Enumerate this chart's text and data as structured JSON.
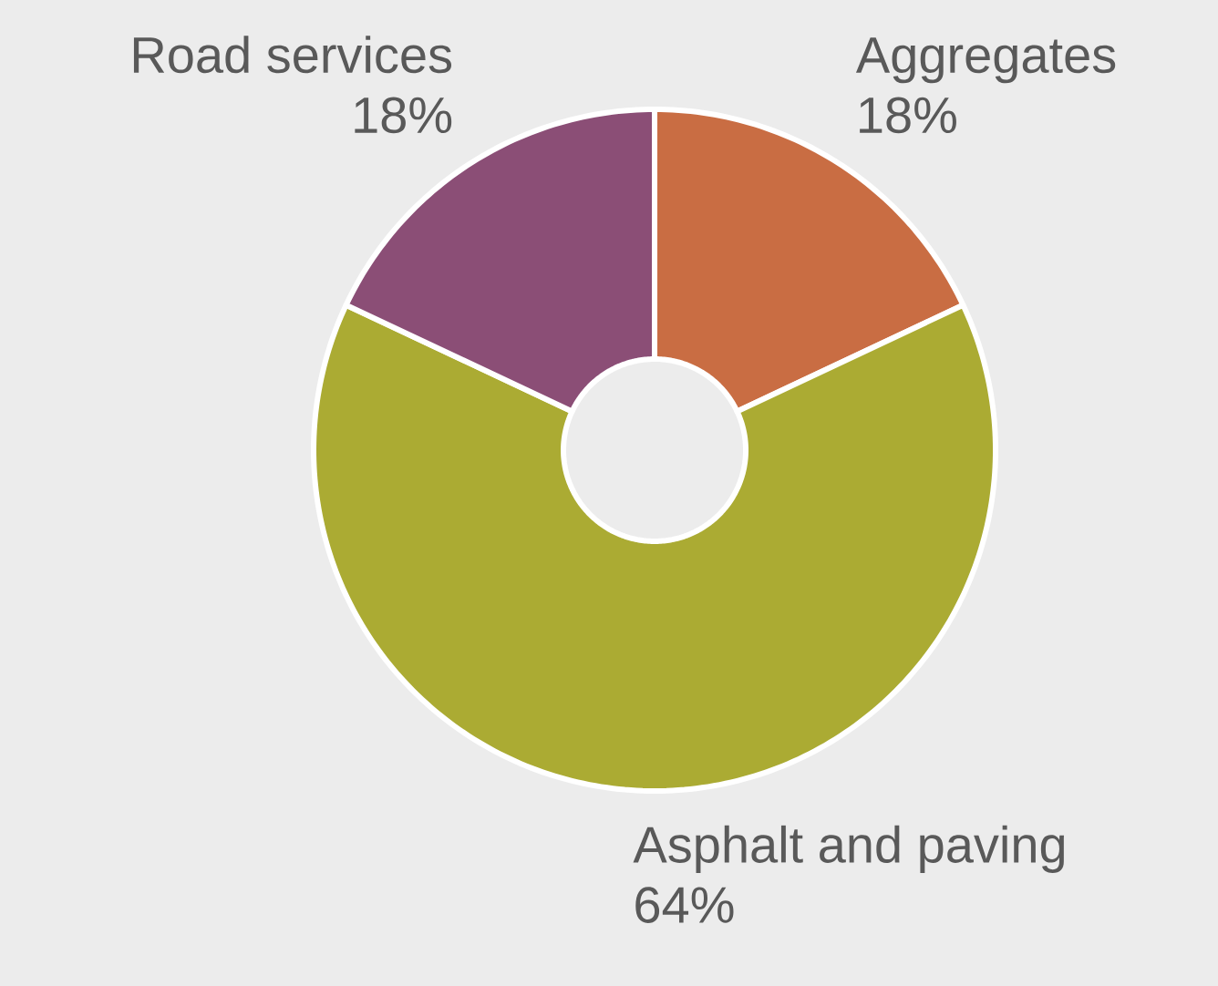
{
  "chart_data": {
    "type": "donut",
    "categories": [
      "Aggregates",
      "Asphalt and paving",
      "Road services"
    ],
    "values": [
      18,
      64,
      18
    ],
    "colors": [
      "#c96d43",
      "#abab33",
      "#8b4e76"
    ],
    "value_labels": [
      "18%",
      "64%",
      "18%"
    ]
  }
}
